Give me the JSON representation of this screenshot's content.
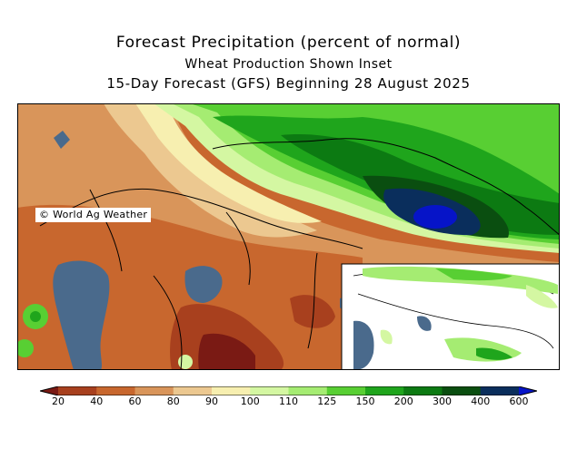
{
  "title": {
    "line1": "Forecast Precipitation (percent of normal)",
    "line2": "Wheat Production Shown Inset",
    "line3": "15-Day Forecast (GFS) Beginning 28 August 2025"
  },
  "credit": "© World Ag Weather",
  "legend": {
    "labels": [
      "20",
      "40",
      "60",
      "80",
      "90",
      "100",
      "110",
      "125",
      "150",
      "200",
      "300",
      "400",
      "600"
    ],
    "colors": [
      "#7a1a14",
      "#a8401e",
      "#c8672e",
      "#d9955a",
      "#ecc890",
      "#f7efb0",
      "#d4f7a2",
      "#a5ec72",
      "#58cf33",
      "#1fa51c",
      "#0c7a12",
      "#0a4e10",
      "#0a2e5c",
      "#0614c8"
    ]
  },
  "map": {
    "region": "Kazakhstan and Central Asia",
    "colors": {
      "ocean_water": "#4a6a8c",
      "borders": "#000000",
      "inset_background": "#ffffff"
    },
    "inset": {
      "description": "Wheat production areas shown in inset"
    }
  }
}
